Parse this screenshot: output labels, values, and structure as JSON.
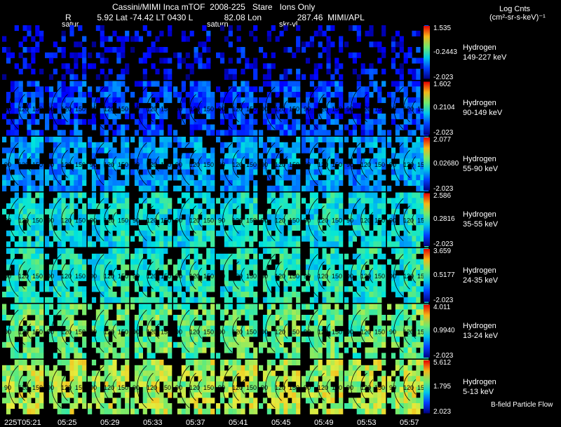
{
  "chart_data": {
    "type": "heatmap",
    "title": "Cassini/MIMI Inca mTOF",
    "date": "2008-225",
    "mode": "Stare",
    "filter": "Ions Only",
    "ephemeris": {
      "r_label": "R",
      "lat_label": "5.92 Lat -74.42 LT 0430 L",
      "lon_label": "82.08 Lon",
      "extra": "287.46",
      "institution": "MIMI/APL"
    },
    "overlay_labels": [
      "satur",
      "saturn",
      "skr-vl"
    ],
    "colorbar_title": "Log Cnts",
    "colorbar_units": "(cm²-sr-s-keV)⁻¹",
    "footer_note": "B-field Particle Flow",
    "time_labels": [
      "225T05:21",
      "05:25",
      "05:29",
      "05:33",
      "05:37",
      "05:41",
      "05:45",
      "05:49",
      "05:53",
      "05:57"
    ],
    "contour_labels": [
      "90",
      "120",
      "150"
    ],
    "rows": [
      {
        "species": "Hydrogen",
        "energy": "149-227 keV",
        "max": "1.535",
        "mid": "-0.2443",
        "min": "-2.023",
        "level": 0.1,
        "fill": 0.35
      },
      {
        "species": "Hydrogen",
        "energy": "90-149 keV",
        "max": "1.602",
        "mid": "0.2104",
        "min": "-2.023",
        "level": 0.18,
        "fill": 0.7
      },
      {
        "species": "Hydrogen",
        "energy": "55-90 keV",
        "max": "2.077",
        "mid": "0.02680",
        "min": "-2.023",
        "level": 0.3,
        "fill": 0.8
      },
      {
        "species": "Hydrogen",
        "energy": "35-55 keV",
        "max": "2.586",
        "mid": "0.2816",
        "min": "-2.023",
        "level": 0.42,
        "fill": 0.82
      },
      {
        "species": "Hydrogen",
        "energy": "24-35 keV",
        "max": "3.659",
        "mid": "0.5177",
        "min": "-2.023",
        "level": 0.46,
        "fill": 0.82
      },
      {
        "species": "Hydrogen",
        "energy": "13-24 keV",
        "max": "4.011",
        "mid": "0.9940",
        "min": "-2.023",
        "level": 0.55,
        "fill": 0.8
      },
      {
        "species": "Hydrogen",
        "energy": "5-13 keV",
        "max": "5.612",
        "mid": "1.795",
        "min": "2.023",
        "level": 0.63,
        "fill": 0.8
      }
    ]
  }
}
